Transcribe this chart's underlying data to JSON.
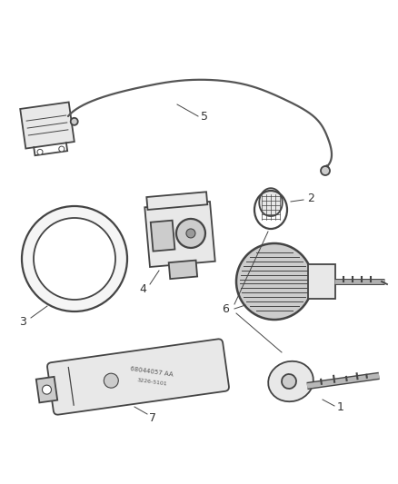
{
  "background_color": "#ffffff",
  "line_color": "#444444",
  "label_color": "#333333",
  "figsize": [
    4.38,
    5.33
  ],
  "dpi": 100,
  "wire_color": "#555555",
  "part_fill": "#e8e8e8",
  "part_fill_dark": "#cccccc"
}
